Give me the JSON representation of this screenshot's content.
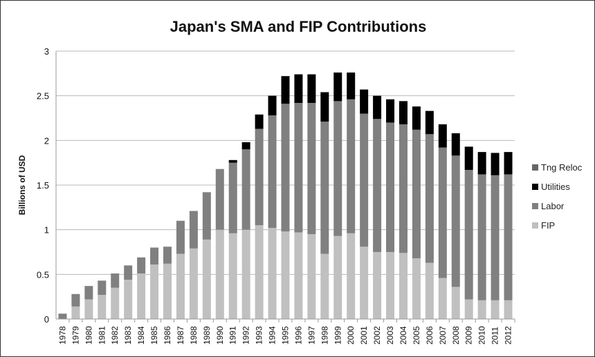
{
  "chart_data": {
    "type": "bar",
    "stacked": true,
    "title": "Japan's SMA and FIP Contributions",
    "xlabel": "",
    "ylabel": "Billions of USD",
    "ylim": [
      0,
      3
    ],
    "yticks": [
      "0",
      "0.5",
      "1",
      "1.5",
      "2",
      "2.5",
      "3"
    ],
    "grid": true,
    "legend_position": "right",
    "categories": [
      "1978",
      "1979",
      "1980",
      "1981",
      "1982",
      "1983",
      "1984",
      "1985",
      "1986",
      "1987",
      "1988",
      "1989",
      "1990",
      "1991",
      "1992",
      "1993",
      "1994",
      "1995",
      "1996",
      "1997",
      "1998",
      "1999",
      "2000",
      "2001",
      "2002",
      "2003",
      "2004",
      "2005",
      "2006",
      "2007",
      "2008",
      "2009",
      "2010",
      "2011",
      "2012"
    ],
    "series": [
      {
        "name": "FIP",
        "color": "#c0c0c0",
        "values": [
          0,
          0.14,
          0.22,
          0.27,
          0.35,
          0.44,
          0.51,
          0.61,
          0.62,
          0.73,
          0.79,
          0.89,
          1.0,
          0.96,
          1.0,
          1.05,
          1.02,
          0.98,
          0.97,
          0.95,
          0.73,
          0.93,
          0.96,
          0.81,
          0.75,
          0.75,
          0.74,
          0.68,
          0.63,
          0.46,
          0.36,
          0.22,
          0.21,
          0.21,
          0.21
        ]
      },
      {
        "name": "Labor",
        "color": "#808080",
        "values": [
          0.06,
          0.14,
          0.15,
          0.16,
          0.16,
          0.16,
          0.18,
          0.19,
          0.19,
          0.37,
          0.42,
          0.53,
          0.68,
          0.79,
          0.9,
          1.08,
          1.26,
          1.43,
          1.45,
          1.47,
          1.48,
          1.51,
          1.5,
          1.49,
          1.49,
          1.45,
          1.44,
          1.44,
          1.44,
          1.46,
          1.47,
          1.45,
          1.41,
          1.4,
          1.41
        ]
      },
      {
        "name": "Utilities",
        "color": "#000000",
        "values": [
          0,
          0,
          0,
          0,
          0,
          0,
          0,
          0,
          0,
          0,
          0,
          0,
          0,
          0.03,
          0.08,
          0.16,
          0.22,
          0.31,
          0.32,
          0.32,
          0.33,
          0.32,
          0.3,
          0.27,
          0.26,
          0.26,
          0.26,
          0.26,
          0.26,
          0.26,
          0.25,
          0.26,
          0.25,
          0.25,
          0.25
        ]
      },
      {
        "name": "Tng Reloc",
        "color": "#666666",
        "values": [
          0,
          0,
          0,
          0,
          0,
          0,
          0,
          0,
          0,
          0,
          0,
          0,
          0,
          0,
          0,
          0,
          0,
          0,
          0,
          0,
          0,
          0,
          0,
          0,
          0,
          0,
          0,
          0,
          0,
          0,
          0,
          0,
          0,
          0,
          0
        ]
      }
    ],
    "legend_order": [
      "Tng Reloc",
      "Utilities",
      "Labor",
      "FIP"
    ]
  }
}
